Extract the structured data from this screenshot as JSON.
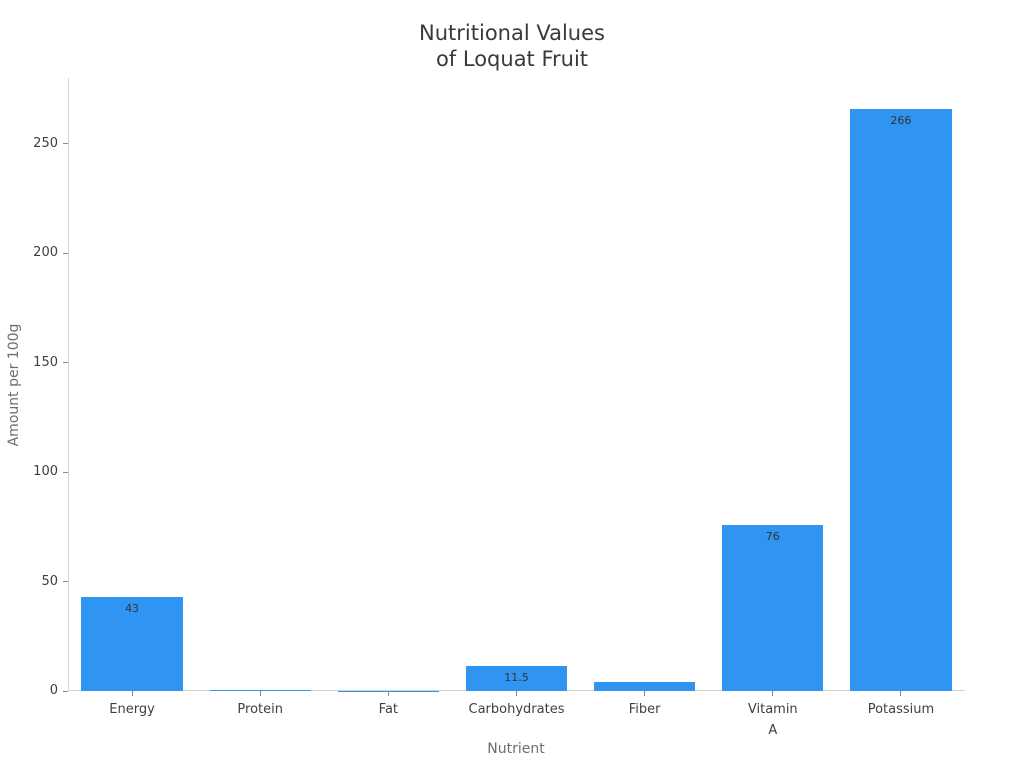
{
  "chart_data": {
    "type": "bar",
    "title_lines": [
      "Nutritional Values",
      "of Loquat Fruit"
    ],
    "title": "Nutritional Values of Loquat Fruit",
    "xlabel": "Nutrient",
    "ylabel": "Amount per 100g",
    "categories": [
      "Energy",
      "Protein",
      "Fat",
      "Carbohydrates",
      "Fiber",
      "Vitamin\nA",
      "Potassium"
    ],
    "values": [
      43,
      0.4,
      0.2,
      11.5,
      4,
      76,
      266
    ],
    "bar_labels": [
      "43",
      "",
      "",
      "11.5",
      "",
      "76",
      "266"
    ],
    "yticks": [
      0,
      50,
      100,
      150,
      200,
      250
    ],
    "ylim": [
      0,
      280
    ],
    "grid": false,
    "legend": false,
    "colors": {
      "bar_fill": "#3094F3",
      "spine": "#d2d2d2",
      "tick_mark": "#8a8a8a",
      "tick_label": "#3f3f3f",
      "axis_title": "#6e6e6e",
      "chart_title": "#3a3a3a",
      "value_label": "#333333",
      "background": "#ffffff"
    }
  }
}
